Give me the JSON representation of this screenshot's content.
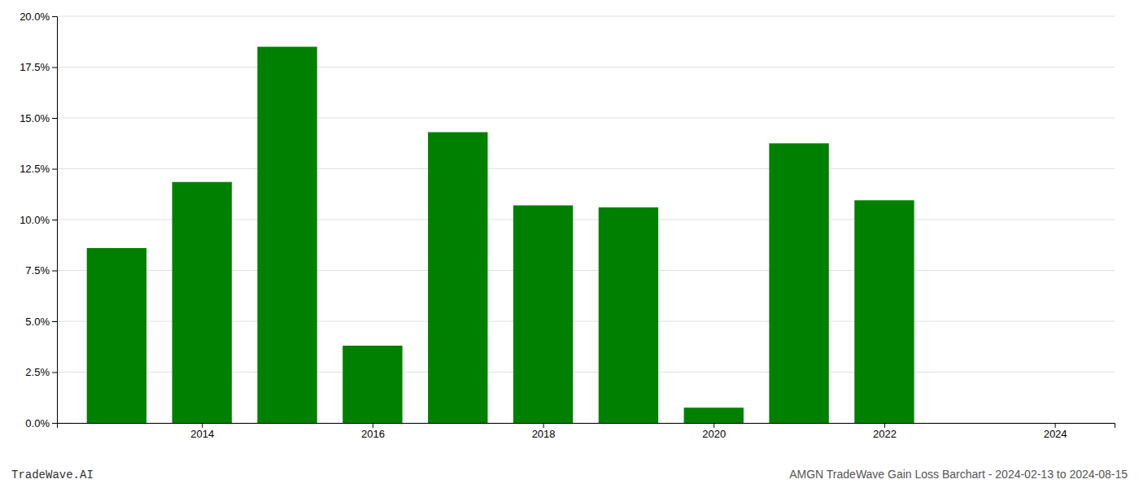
{
  "chart_data": {
    "type": "bar",
    "x": [
      2013,
      2014,
      2015,
      2016,
      2017,
      2018,
      2019,
      2020,
      2021,
      2022
    ],
    "values": [
      0.086,
      0.1185,
      0.185,
      0.038,
      0.143,
      0.107,
      0.106,
      0.0075,
      0.1375,
      0.1095
    ],
    "color": "#008000",
    "xlim": [
      2012.3,
      2024.7
    ],
    "xticks": [
      2014,
      2016,
      2018,
      2020,
      2022,
      2024
    ],
    "ylim": [
      0,
      0.2
    ],
    "yticks": [
      {
        "value": 0,
        "label": "0.0%"
      },
      {
        "value": 0.025,
        "label": "2.5%"
      },
      {
        "value": 0.05,
        "label": "5.0%"
      },
      {
        "value": 0.075,
        "label": "7.5%"
      },
      {
        "value": 0.1,
        "label": "10.0%"
      },
      {
        "value": 0.125,
        "label": "12.5%"
      },
      {
        "value": 0.15,
        "label": "15.0%"
      },
      {
        "value": 0.175,
        "label": "17.5%"
      },
      {
        "value": 0.2,
        "label": "20.0%"
      }
    ],
    "grid": true,
    "annotations": [
      "TradeWave.AI",
      "AMGN TradeWave Gain Loss Barchart - 2024-02-13 to 2024-08-15"
    ]
  }
}
